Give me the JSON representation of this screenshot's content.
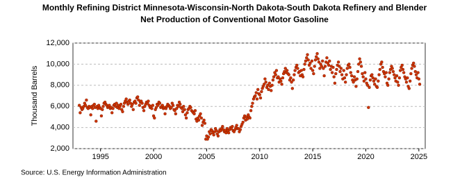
{
  "chart_data": {
    "type": "scatter",
    "title": "Monthly Refining District Minnesota-Wisconsin-North Dakota-South Dakota Refinery and Blender Net Production of Conventional Motor Gasoline",
    "y_label": "Thousand Barrels",
    "source": "Source: U.S. Energy Information Administration",
    "xlim": [
      1992.4,
      2025.6
    ],
    "xticks": [
      1995,
      2000,
      2005,
      2010,
      2015,
      2020,
      2025
    ],
    "ylim": [
      2000,
      12000
    ],
    "yticks": [
      {
        "value": 2000,
        "label": "2,000"
      },
      {
        "value": 4000,
        "label": "4,000"
      },
      {
        "value": 6000,
        "label": "6,000"
      },
      {
        "value": 8000,
        "label": "8,000"
      },
      {
        "value": 10000,
        "label": "10,000"
      },
      {
        "value": 12000,
        "label": "12,000"
      }
    ],
    "grid": true,
    "series": [
      {
        "color": "#cc3300",
        "x": [
          1993,
          1993.08,
          1993.17,
          1993.25,
          1993.33,
          1993.42,
          1993.5,
          1993.58,
          1993.67,
          1993.75,
          1993.83,
          1993.92,
          1994,
          1994.08,
          1994.17,
          1994.25,
          1994.33,
          1994.42,
          1994.5,
          1994.58,
          1994.67,
          1994.75,
          1994.83,
          1994.92,
          1995,
          1995.08,
          1995.17,
          1995.25,
          1995.33,
          1995.42,
          1995.5,
          1995.58,
          1995.67,
          1995.75,
          1995.83,
          1995.92,
          1996,
          1996.08,
          1996.17,
          1996.25,
          1996.33,
          1996.42,
          1996.5,
          1996.58,
          1996.67,
          1996.75,
          1996.83,
          1996.92,
          1997,
          1997.08,
          1997.17,
          1997.25,
          1997.33,
          1997.42,
          1997.5,
          1997.58,
          1997.67,
          1997.75,
          1997.83,
          1997.92,
          1998,
          1998.08,
          1998.17,
          1998.25,
          1998.33,
          1998.42,
          1998.5,
          1998.58,
          1998.67,
          1998.75,
          1998.83,
          1998.92,
          1999,
          1999.08,
          1999.17,
          1999.25,
          1999.33,
          1999.42,
          1999.5,
          1999.58,
          1999.67,
          1999.75,
          1999.83,
          1999.92,
          2000,
          2000.08,
          2000.17,
          2000.25,
          2000.33,
          2000.42,
          2000.5,
          2000.58,
          2000.67,
          2000.75,
          2000.83,
          2000.92,
          2001,
          2001.08,
          2001.17,
          2001.25,
          2001.33,
          2001.42,
          2001.5,
          2001.58,
          2001.67,
          2001.75,
          2001.83,
          2001.92,
          2002,
          2002.08,
          2002.17,
          2002.25,
          2002.33,
          2002.42,
          2002.5,
          2002.58,
          2002.67,
          2002.75,
          2002.83,
          2002.92,
          2003,
          2003.08,
          2003.17,
          2003.25,
          2003.33,
          2003.42,
          2003.5,
          2003.58,
          2003.67,
          2003.75,
          2003.83,
          2003.92,
          2004,
          2004.08,
          2004.17,
          2004.25,
          2004.33,
          2004.42,
          2004.5,
          2004.58,
          2004.67,
          2004.75,
          2004.83,
          2004.92,
          2005,
          2005.08,
          2005.17,
          2005.25,
          2005.33,
          2005.42,
          2005.5,
          2005.58,
          2005.67,
          2005.75,
          2005.83,
          2005.92,
          2006,
          2006.08,
          2006.17,
          2006.25,
          2006.33,
          2006.42,
          2006.5,
          2006.58,
          2006.67,
          2006.75,
          2006.83,
          2006.92,
          2007,
          2007.08,
          2007.17,
          2007.25,
          2007.33,
          2007.42,
          2007.5,
          2007.58,
          2007.67,
          2007.75,
          2007.83,
          2007.92,
          2008,
          2008.08,
          2008.17,
          2008.25,
          2008.33,
          2008.42,
          2008.5,
          2008.58,
          2008.67,
          2008.75,
          2008.83,
          2008.92,
          2009,
          2009.08,
          2009.17,
          2009.25,
          2009.33,
          2009.42,
          2009.5,
          2009.58,
          2009.67,
          2009.75,
          2009.83,
          2009.92,
          2010,
          2010.08,
          2010.17,
          2010.25,
          2010.33,
          2010.42,
          2010.5,
          2010.58,
          2010.67,
          2010.75,
          2010.83,
          2010.92,
          2011,
          2011.08,
          2011.17,
          2011.25,
          2011.33,
          2011.42,
          2011.5,
          2011.58,
          2011.67,
          2011.75,
          2011.83,
          2011.92,
          2012,
          2012.08,
          2012.17,
          2012.25,
          2012.33,
          2012.42,
          2012.5,
          2012.58,
          2012.67,
          2012.75,
          2012.83,
          2012.92,
          2013,
          2013.08,
          2013.17,
          2013.25,
          2013.33,
          2013.42,
          2013.5,
          2013.58,
          2013.67,
          2013.75,
          2013.83,
          2013.92,
          2014,
          2014.08,
          2014.17,
          2014.25,
          2014.33,
          2014.42,
          2014.5,
          2014.58,
          2014.67,
          2014.75,
          2014.83,
          2014.92,
          2015,
          2015.08,
          2015.17,
          2015.25,
          2015.33,
          2015.42,
          2015.5,
          2015.58,
          2015.67,
          2015.75,
          2015.83,
          2015.92,
          2016,
          2016.08,
          2016.17,
          2016.25,
          2016.33,
          2016.42,
          2016.5,
          2016.58,
          2016.67,
          2016.75,
          2016.83,
          2016.92,
          2017,
          2017.08,
          2017.17,
          2017.25,
          2017.33,
          2017.42,
          2017.5,
          2017.58,
          2017.67,
          2017.75,
          2017.83,
          2017.92,
          2018,
          2018.08,
          2018.17,
          2018.25,
          2018.33,
          2018.42,
          2018.5,
          2018.58,
          2018.67,
          2018.75,
          2018.83,
          2018.92,
          2019,
          2019.08,
          2019.17,
          2019.25,
          2019.33,
          2019.42,
          2019.5,
          2019.58,
          2019.67,
          2019.75,
          2019.83,
          2019.92,
          2020,
          2020.08,
          2020.17,
          2020.25,
          2020.33,
          2020.42,
          2020.5,
          2020.58,
          2020.67,
          2020.75,
          2020.83,
          2020.92,
          2021,
          2021.08,
          2021.17,
          2021.25,
          2021.33,
          2021.42,
          2021.5,
          2021.58,
          2021.67,
          2021.75,
          2021.83,
          2021.92,
          2022,
          2022.08,
          2022.17,
          2022.25,
          2022.33,
          2022.42,
          2022.5,
          2022.58,
          2022.67,
          2022.75,
          2022.83,
          2022.92,
          2023,
          2023.08,
          2023.17,
          2023.25,
          2023.33,
          2023.42,
          2023.5,
          2023.58,
          2023.67,
          2023.75,
          2023.83,
          2023.92,
          2024,
          2024.08,
          2024.17,
          2024.25,
          2024.33,
          2024.42,
          2024.5,
          2024.58,
          2024.67,
          2024.75,
          2024.83,
          2024.92,
          2025,
          2025.08
        ],
        "values": [
          6100,
          5400,
          5900,
          5700,
          5800,
          6000,
          6300,
          6100,
          6600,
          5900,
          5800,
          6000,
          5900,
          5200,
          6000,
          5800,
          6100,
          6200,
          5900,
          4600,
          6000,
          5800,
          6100,
          5900,
          5800,
          5100,
          5700,
          6000,
          6300,
          6400,
          6200,
          6100,
          5900,
          6000,
          6100,
          5800,
          5900,
          5400,
          5800,
          6100,
          6200,
          6000,
          6300,
          5900,
          6100,
          5800,
          6000,
          6200,
          5700,
          5500,
          6000,
          6300,
          6500,
          6700,
          6400,
          6200,
          6500,
          6600,
          6300,
          6000,
          6200,
          5700,
          6400,
          6500,
          6300,
          6800,
          6900,
          6600,
          6100,
          6400,
          6500,
          6300,
          5900,
          5600,
          6000,
          6200,
          6400,
          6300,
          6500,
          6100,
          5900,
          6000,
          5800,
          6100,
          5100,
          4900,
          5700,
          5900,
          6200,
          6100,
          6400,
          6300,
          5900,
          6000,
          6100,
          5800,
          5900,
          5300,
          5800,
          6000,
          6200,
          6100,
          6000,
          5800,
          5900,
          6300,
          6100,
          5700,
          5600,
          5300,
          5800,
          6100,
          6000,
          6400,
          6200,
          5900,
          5800,
          5500,
          6000,
          5700,
          5200,
          4900,
          5400,
          5700,
          5800,
          6000,
          5900,
          5600,
          5500,
          5400,
          5300,
          5600,
          4800,
          4600,
          4900,
          4700,
          5100,
          5300,
          4900,
          4200,
          4500,
          4700,
          4400,
          2900,
          3200,
          2900,
          3100,
          3600,
          3400,
          3800,
          3700,
          3500,
          3300,
          3600,
          3900,
          3700,
          3400,
          3200,
          3600,
          3800,
          3700,
          3900,
          4100,
          3800,
          3600,
          3700,
          3500,
          3900,
          3700,
          3500,
          3800,
          4000,
          3900,
          4100,
          3700,
          3600,
          3800,
          4000,
          4200,
          3900,
          3900,
          3600,
          3800,
          4100,
          4300,
          4500,
          4900,
          5100,
          4700,
          5000,
          4800,
          5200,
          5000,
          4900,
          5600,
          6000,
          6300,
          6700,
          6900,
          7000,
          7300,
          6700,
          7600,
          7200,
          7100,
          6800,
          7400,
          7700,
          7900,
          8100,
          8600,
          8300,
          7800,
          8000,
          7600,
          8200,
          7900,
          7500,
          8000,
          8500,
          8800,
          9200,
          9000,
          9400,
          8700,
          8800,
          8300,
          8600,
          8400,
          8100,
          8700,
          9100,
          9300,
          9600,
          9200,
          9400,
          9100,
          9000,
          8500,
          8700,
          8300,
          7700,
          8500,
          9000,
          9400,
          9700,
          9900,
          9600,
          9200,
          9300,
          8900,
          9400,
          9000,
          8800,
          9500,
          10000,
          10300,
          10600,
          10900,
          10400,
          9900,
          10100,
          9600,
          10300,
          9400,
          9100,
          9800,
          10400,
          10700,
          11000,
          10500,
          10200,
          9600,
          10000,
          9800,
          10300,
          9600,
          8900,
          9800,
          10200,
          10600,
          10100,
          9900,
          10300,
          9500,
          9800,
          9200,
          9700,
          8800,
          8200,
          9100,
          9500,
          9900,
          10200,
          9800,
          9300,
          9600,
          9000,
          8600,
          9400,
          8700,
          8300,
          9000,
          9600,
          9900,
          10000,
          9700,
          9200,
          8900,
          8500,
          8300,
          8800,
          8500,
          7900,
          8600,
          9300,
          10000,
          10500,
          10200,
          9800,
          9100,
          8800,
          8400,
          9200,
          8600,
          8200,
          8000,
          5900,
          7800,
          8500,
          8900,
          9000,
          8700,
          8400,
          8100,
          8600,
          7900,
          7800,
          8400,
          9000,
          9500,
          10000,
          10200,
          9700,
          9300,
          9100,
          8800,
          9200,
          8200,
          8000,
          8600,
          9200,
          9500,
          9800,
          9600,
          9300,
          9000,
          8700,
          8400,
          8900,
          8300,
          8000,
          8700,
          9400,
          9700,
          9900,
          9500,
          9200,
          8800,
          8600,
          8300,
          8700,
          7900,
          7700,
          8400,
          9100,
          9600,
          9900,
          10100,
          9800,
          9300,
          9000,
          8700,
          9200,
          8600,
          8100
        ]
      }
    ]
  }
}
